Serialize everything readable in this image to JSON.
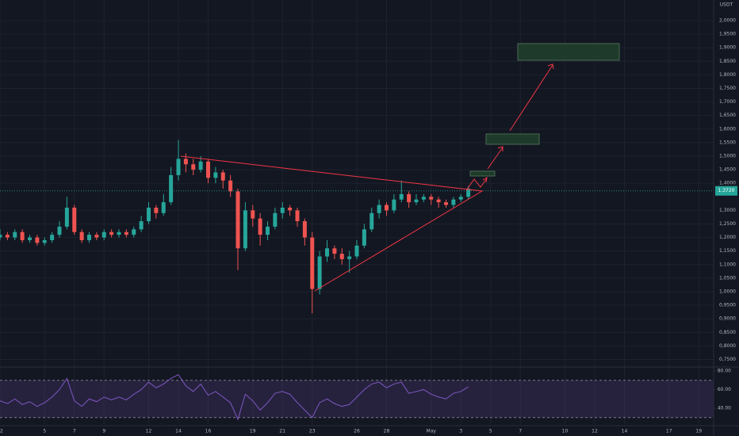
{
  "chart_data": {
    "type": "candlestick",
    "unit": "USDT",
    "x": [
      0,
      0.5,
      1,
      1.5,
      2,
      2.5,
      3,
      3.5,
      4,
      4.5,
      5,
      5.5,
      6,
      6.5,
      7,
      7.5,
      8,
      8.5,
      9,
      9.5,
      10,
      10.5,
      11,
      11.5,
      12,
      12.5,
      13,
      13.5,
      14,
      14.5,
      15,
      15.5,
      16,
      16.5,
      17,
      17.5,
      18,
      18.5,
      19,
      19.5,
      20,
      20.5,
      21,
      21.5,
      22,
      22.5,
      23,
      23.5,
      24,
      24.5,
      25,
      25.5,
      26,
      26.5,
      27,
      27.5,
      28,
      28.5,
      29,
      29.5,
      30,
      30.5,
      31,
      31.5
    ],
    "open": [
      1.2,
      1.21,
      1.2,
      1.22,
      1.19,
      1.2,
      1.18,
      1.19,
      1.21,
      1.24,
      1.31,
      1.22,
      1.19,
      1.21,
      1.2,
      1.22,
      1.21,
      1.22,
      1.21,
      1.23,
      1.26,
      1.31,
      1.29,
      1.33,
      1.43,
      1.49,
      1.47,
      1.45,
      1.48,
      1.42,
      1.44,
      1.41,
      1.37,
      1.16,
      1.3,
      1.27,
      1.21,
      1.24,
      1.29,
      1.31,
      1.3,
      1.26,
      1.2,
      1.01,
      1.13,
      1.16,
      1.14,
      1.12,
      1.13,
      1.17,
      1.23,
      1.29,
      1.32,
      1.3,
      1.34,
      1.36,
      1.33,
      1.34,
      1.35,
      1.34,
      1.33,
      1.32,
      1.34,
      1.35
    ],
    "high": [
      1.23,
      1.22,
      1.23,
      1.23,
      1.21,
      1.21,
      1.2,
      1.22,
      1.26,
      1.35,
      1.32,
      1.23,
      1.22,
      1.22,
      1.23,
      1.23,
      1.23,
      1.23,
      1.24,
      1.28,
      1.33,
      1.32,
      1.36,
      1.46,
      1.56,
      1.51,
      1.49,
      1.5,
      1.49,
      1.46,
      1.45,
      1.43,
      1.38,
      1.33,
      1.32,
      1.29,
      1.26,
      1.31,
      1.33,
      1.32,
      1.31,
      1.27,
      1.22,
      1.15,
      1.19,
      1.17,
      1.16,
      1.15,
      1.19,
      1.25,
      1.31,
      1.34,
      1.33,
      1.36,
      1.41,
      1.37,
      1.36,
      1.36,
      1.36,
      1.35,
      1.34,
      1.35,
      1.36,
      1.39
    ],
    "low": [
      1.19,
      1.19,
      1.19,
      1.18,
      1.18,
      1.17,
      1.17,
      1.18,
      1.2,
      1.23,
      1.21,
      1.18,
      1.18,
      1.19,
      1.19,
      1.2,
      1.2,
      1.2,
      1.2,
      1.22,
      1.25,
      1.27,
      1.28,
      1.32,
      1.41,
      1.44,
      1.43,
      1.44,
      1.4,
      1.4,
      1.38,
      1.35,
      1.08,
      1.15,
      1.24,
      1.17,
      1.19,
      1.23,
      1.27,
      1.28,
      1.24,
      1.17,
      0.92,
      0.99,
      1.11,
      1.12,
      1.1,
      1.07,
      1.12,
      1.16,
      1.22,
      1.27,
      1.28,
      1.29,
      1.33,
      1.31,
      1.32,
      1.33,
      1.32,
      1.31,
      1.31,
      1.31,
      1.33,
      1.34
    ],
    "close": [
      1.21,
      1.2,
      1.22,
      1.19,
      1.2,
      1.18,
      1.19,
      1.21,
      1.24,
      1.31,
      1.22,
      1.19,
      1.21,
      1.2,
      1.22,
      1.21,
      1.22,
      1.21,
      1.23,
      1.26,
      1.31,
      1.29,
      1.33,
      1.43,
      1.49,
      1.47,
      1.45,
      1.48,
      1.42,
      1.44,
      1.41,
      1.37,
      1.16,
      1.3,
      1.27,
      1.21,
      1.24,
      1.29,
      1.31,
      1.3,
      1.26,
      1.2,
      1.01,
      1.13,
      1.16,
      1.14,
      1.12,
      1.13,
      1.17,
      1.23,
      1.29,
      1.32,
      1.3,
      1.34,
      1.36,
      1.33,
      1.34,
      1.35,
      1.34,
      1.33,
      1.32,
      1.34,
      1.35,
      1.38
    ],
    "up_color": "#26a69a",
    "down_color": "#ef5350",
    "xlim": [
      0,
      48
    ],
    "xticks": [
      {
        "value": 0,
        "label": "2"
      },
      {
        "value": 3,
        "label": "5"
      },
      {
        "value": 5,
        "label": "7"
      },
      {
        "value": 7,
        "label": "9"
      },
      {
        "value": 10,
        "label": "12"
      },
      {
        "value": 12,
        "label": "14"
      },
      {
        "value": 14,
        "label": "16"
      },
      {
        "value": 17,
        "label": "19"
      },
      {
        "value": 19,
        "label": "21"
      },
      {
        "value": 21,
        "label": "23"
      },
      {
        "value": 24,
        "label": "26"
      },
      {
        "value": 26,
        "label": "28"
      },
      {
        "value": 29,
        "label": "May"
      },
      {
        "value": 31,
        "label": "3"
      },
      {
        "value": 33,
        "label": "5"
      },
      {
        "value": 35,
        "label": "7"
      },
      {
        "value": 38,
        "label": "10"
      },
      {
        "value": 40,
        "label": "12"
      },
      {
        "value": 42,
        "label": "14"
      },
      {
        "value": 45,
        "label": "17"
      },
      {
        "value": 47,
        "label": "19"
      }
    ],
    "ylim": [
      0.725,
      2.076
    ],
    "yticks": [
      {
        "value": 2.0,
        "label": "2,0000"
      },
      {
        "value": 1.95,
        "label": "1,9500"
      },
      {
        "value": 1.9,
        "label": "1,9000"
      },
      {
        "value": 1.85,
        "label": "1,8500"
      },
      {
        "value": 1.8,
        "label": "1,8000"
      },
      {
        "value": 1.75,
        "label": "1,7500"
      },
      {
        "value": 1.7,
        "label": "1,7000"
      },
      {
        "value": 1.65,
        "label": "1,6500"
      },
      {
        "value": 1.6,
        "label": "1,6000"
      },
      {
        "value": 1.55,
        "label": "1,5500"
      },
      {
        "value": 1.5,
        "label": "1,5000"
      },
      {
        "value": 1.45,
        "label": "1,4500"
      },
      {
        "value": 1.4,
        "label": "1,4000"
      },
      {
        "value": 1.3,
        "label": "1,3000"
      },
      {
        "value": 1.25,
        "label": "1,2500"
      },
      {
        "value": 1.2,
        "label": "1,2000"
      },
      {
        "value": 1.15,
        "label": "1,1500"
      },
      {
        "value": 1.1,
        "label": "1,1000"
      },
      {
        "value": 1.05,
        "label": "1,0500"
      },
      {
        "value": 1.0,
        "label": "1,0000"
      },
      {
        "value": 0.95,
        "label": "0,9500"
      },
      {
        "value": 0.9,
        "label": "0,9000"
      },
      {
        "value": 0.85,
        "label": "0,8500"
      },
      {
        "value": 0.8,
        "label": "0,8000"
      },
      {
        "value": 0.75,
        "label": "0,7500"
      }
    ],
    "grid": true,
    "current_price": {
      "value": 1.372,
      "label": "1,3720"
    },
    "rsi": {
      "color": "#7e57c2",
      "values": [
        48,
        45,
        50,
        44,
        47,
        42,
        46,
        52,
        60,
        72,
        48,
        42,
        50,
        47,
        52,
        49,
        52,
        49,
        55,
        60,
        68,
        62,
        66,
        72,
        76,
        64,
        58,
        66,
        54,
        58,
        52,
        46,
        28,
        55,
        48,
        38,
        46,
        56,
        58,
        55,
        46,
        38,
        30,
        46,
        50,
        45,
        42,
        44,
        52,
        60,
        66,
        68,
        62,
        66,
        68,
        56,
        58,
        60,
        55,
        52,
        50,
        56,
        58,
        63
      ],
      "ylim": [
        23,
        82.5
      ],
      "yticks": [
        {
          "value": 80,
          "label": "80.00"
        },
        {
          "value": 60,
          "label": "60.00"
        },
        {
          "value": 40,
          "label": "40.00"
        }
      ],
      "bands": [
        70,
        30
      ]
    }
  }
}
